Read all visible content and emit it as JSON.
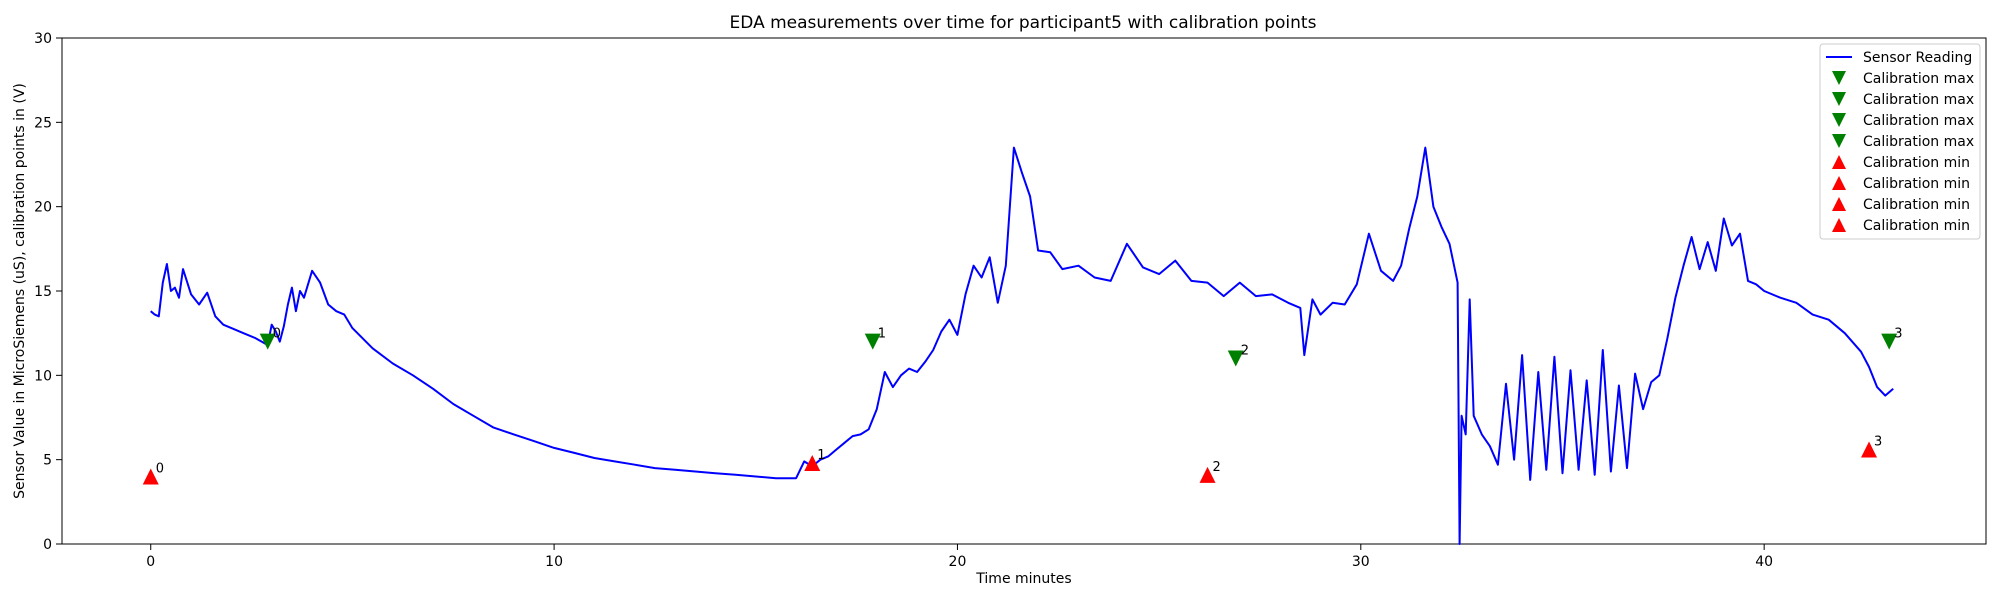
{
  "chart_data": {
    "type": "line",
    "title": "EDA measurements over time for participant5 with calibration points",
    "xlabel": "Time minutes",
    "ylabel": "Sensor Value in MicroSiemens (uS), calibration points in (V)",
    "xlim": [
      -2.2,
      45.5
    ],
    "ylim": [
      0,
      30
    ],
    "x_ticks": [
      0,
      10,
      20,
      30,
      40
    ],
    "y_ticks": [
      0,
      5,
      10,
      15,
      20,
      25,
      30
    ],
    "grid": false,
    "legend_position": "top-right",
    "colors": {
      "sensor": "#0000ff",
      "calibration_max": "#008000",
      "calibration_min": "#ff0000"
    },
    "series": [
      {
        "name": "Sensor Reading",
        "x": [
          0.0,
          0.1,
          0.2,
          0.3,
          0.4,
          0.5,
          0.6,
          0.7,
          0.8,
          1.0,
          1.2,
          1.4,
          1.6,
          1.8,
          2.0,
          2.3,
          2.6,
          2.9,
          3.0,
          3.1,
          3.2,
          3.3,
          3.4,
          3.5,
          3.6,
          3.7,
          3.8,
          4.0,
          4.2,
          4.4,
          4.6,
          4.8,
          5.0,
          5.5,
          6.0,
          6.5,
          7.0,
          7.5,
          8.0,
          8.5,
          9.0,
          9.5,
          10.0,
          10.5,
          11.0,
          11.5,
          12.0,
          12.5,
          13.0,
          13.5,
          14.0,
          14.5,
          15.0,
          15.5,
          16.0,
          16.2,
          16.4,
          16.6,
          16.8,
          17.0,
          17.2,
          17.4,
          17.6,
          17.8,
          18.0,
          18.2,
          18.4,
          18.6,
          18.8,
          19.0,
          19.2,
          19.4,
          19.6,
          19.8,
          20.0,
          20.2,
          20.4,
          20.6,
          20.8,
          21.0,
          21.2,
          21.4,
          21.6,
          21.8,
          22.0,
          22.3,
          22.6,
          23.0,
          23.4,
          23.8,
          24.2,
          24.6,
          25.0,
          25.4,
          25.8,
          26.2,
          26.6,
          27.0,
          27.4,
          27.8,
          28.2,
          28.5,
          28.6,
          28.8,
          29.0,
          29.3,
          29.6,
          29.9,
          30.2,
          30.5,
          30.8,
          31.0,
          31.2,
          31.4,
          31.6,
          31.8,
          32.0,
          32.2,
          32.4,
          32.45,
          32.5,
          32.6,
          32.7,
          32.8,
          33.0,
          33.2,
          33.4,
          33.6,
          33.8,
          34.0,
          34.2,
          34.4,
          34.6,
          34.8,
          35.0,
          35.2,
          35.4,
          35.6,
          35.8,
          36.0,
          36.2,
          36.4,
          36.6,
          36.8,
          37.0,
          37.2,
          37.4,
          37.6,
          37.8,
          38.0,
          38.2,
          38.4,
          38.6,
          38.8,
          39.0,
          39.2,
          39.4,
          39.6,
          39.8,
          40.0,
          40.4,
          40.8,
          41.2,
          41.6,
          42.0,
          42.4,
          42.6,
          42.8,
          43.0,
          43.2
        ],
        "values": [
          13.8,
          13.6,
          13.5,
          15.5,
          16.6,
          15.0,
          15.2,
          14.6,
          16.3,
          14.8,
          14.2,
          14.9,
          13.5,
          13.0,
          12.8,
          12.5,
          12.2,
          11.8,
          13.0,
          12.6,
          12.0,
          12.9,
          14.2,
          15.2,
          13.8,
          15.0,
          14.6,
          16.2,
          15.5,
          14.2,
          13.8,
          13.6,
          12.8,
          11.6,
          10.7,
          10.0,
          9.2,
          8.3,
          7.6,
          6.9,
          6.5,
          6.1,
          5.7,
          5.4,
          5.1,
          4.9,
          4.7,
          4.5,
          4.4,
          4.3,
          4.2,
          4.1,
          4.0,
          3.9,
          3.9,
          4.9,
          4.6,
          5.0,
          5.2,
          5.6,
          6.0,
          6.4,
          6.5,
          6.8,
          8.0,
          10.2,
          9.3,
          10.0,
          10.4,
          10.2,
          10.8,
          11.5,
          12.6,
          13.3,
          12.4,
          14.8,
          16.5,
          15.8,
          17.0,
          14.3,
          16.5,
          23.5,
          22.0,
          20.6,
          17.4,
          17.3,
          16.3,
          16.5,
          15.8,
          15.6,
          17.8,
          16.4,
          16.0,
          16.8,
          15.6,
          15.5,
          14.7,
          15.5,
          14.7,
          14.8,
          14.3,
          14.0,
          11.2,
          14.5,
          13.6,
          14.3,
          14.2,
          15.4,
          18.4,
          16.2,
          15.6,
          16.5,
          18.7,
          20.6,
          23.5,
          20.0,
          18.8,
          17.8,
          15.5,
          0.0,
          7.6,
          6.5,
          14.5,
          7.6,
          6.5,
          5.8,
          4.7,
          9.5,
          5.0,
          11.2,
          3.8,
          10.2,
          4.4,
          11.1,
          4.2,
          10.3,
          4.4,
          9.7,
          4.1,
          11.5,
          4.3,
          9.4,
          4.5,
          10.1,
          8.0,
          9.6,
          10.0,
          12.2,
          14.6,
          16.5,
          18.2,
          16.3,
          17.9,
          16.2,
          19.3,
          17.7,
          18.4,
          15.6,
          15.4,
          15.0,
          14.6,
          14.3,
          13.6,
          13.3,
          12.5,
          11.4,
          10.5,
          9.3,
          8.8,
          9.2
        ]
      }
    ],
    "calibration_max": {
      "name": "Calibration max",
      "points": [
        {
          "x": 2.9,
          "y": 12.0,
          "label": "0"
        },
        {
          "x": 17.9,
          "y": 12.0,
          "label": "1"
        },
        {
          "x": 26.9,
          "y": 11.0,
          "label": "2"
        },
        {
          "x": 43.1,
          "y": 12.0,
          "label": "3"
        }
      ]
    },
    "calibration_min": {
      "name": "Calibration min",
      "points": [
        {
          "x": 0.0,
          "y": 4.0,
          "label": "0"
        },
        {
          "x": 16.4,
          "y": 4.8,
          "label": "1"
        },
        {
          "x": 26.2,
          "y": 4.1,
          "label": "2"
        },
        {
          "x": 42.6,
          "y": 5.6,
          "label": "3"
        }
      ]
    },
    "legend": [
      {
        "label": "Sensor Reading",
        "kind": "line",
        "color": "#0000ff"
      },
      {
        "label": "Calibration max",
        "kind": "triangle-down",
        "color": "#008000"
      },
      {
        "label": "Calibration max",
        "kind": "triangle-down",
        "color": "#008000"
      },
      {
        "label": "Calibration max",
        "kind": "triangle-down",
        "color": "#008000"
      },
      {
        "label": "Calibration max",
        "kind": "triangle-down",
        "color": "#008000"
      },
      {
        "label": "Calibration min",
        "kind": "triangle-up",
        "color": "#ff0000"
      },
      {
        "label": "Calibration min",
        "kind": "triangle-up",
        "color": "#ff0000"
      },
      {
        "label": "Calibration min",
        "kind": "triangle-up",
        "color": "#ff0000"
      },
      {
        "label": "Calibration min",
        "kind": "triangle-up",
        "color": "#ff0000"
      }
    ]
  }
}
